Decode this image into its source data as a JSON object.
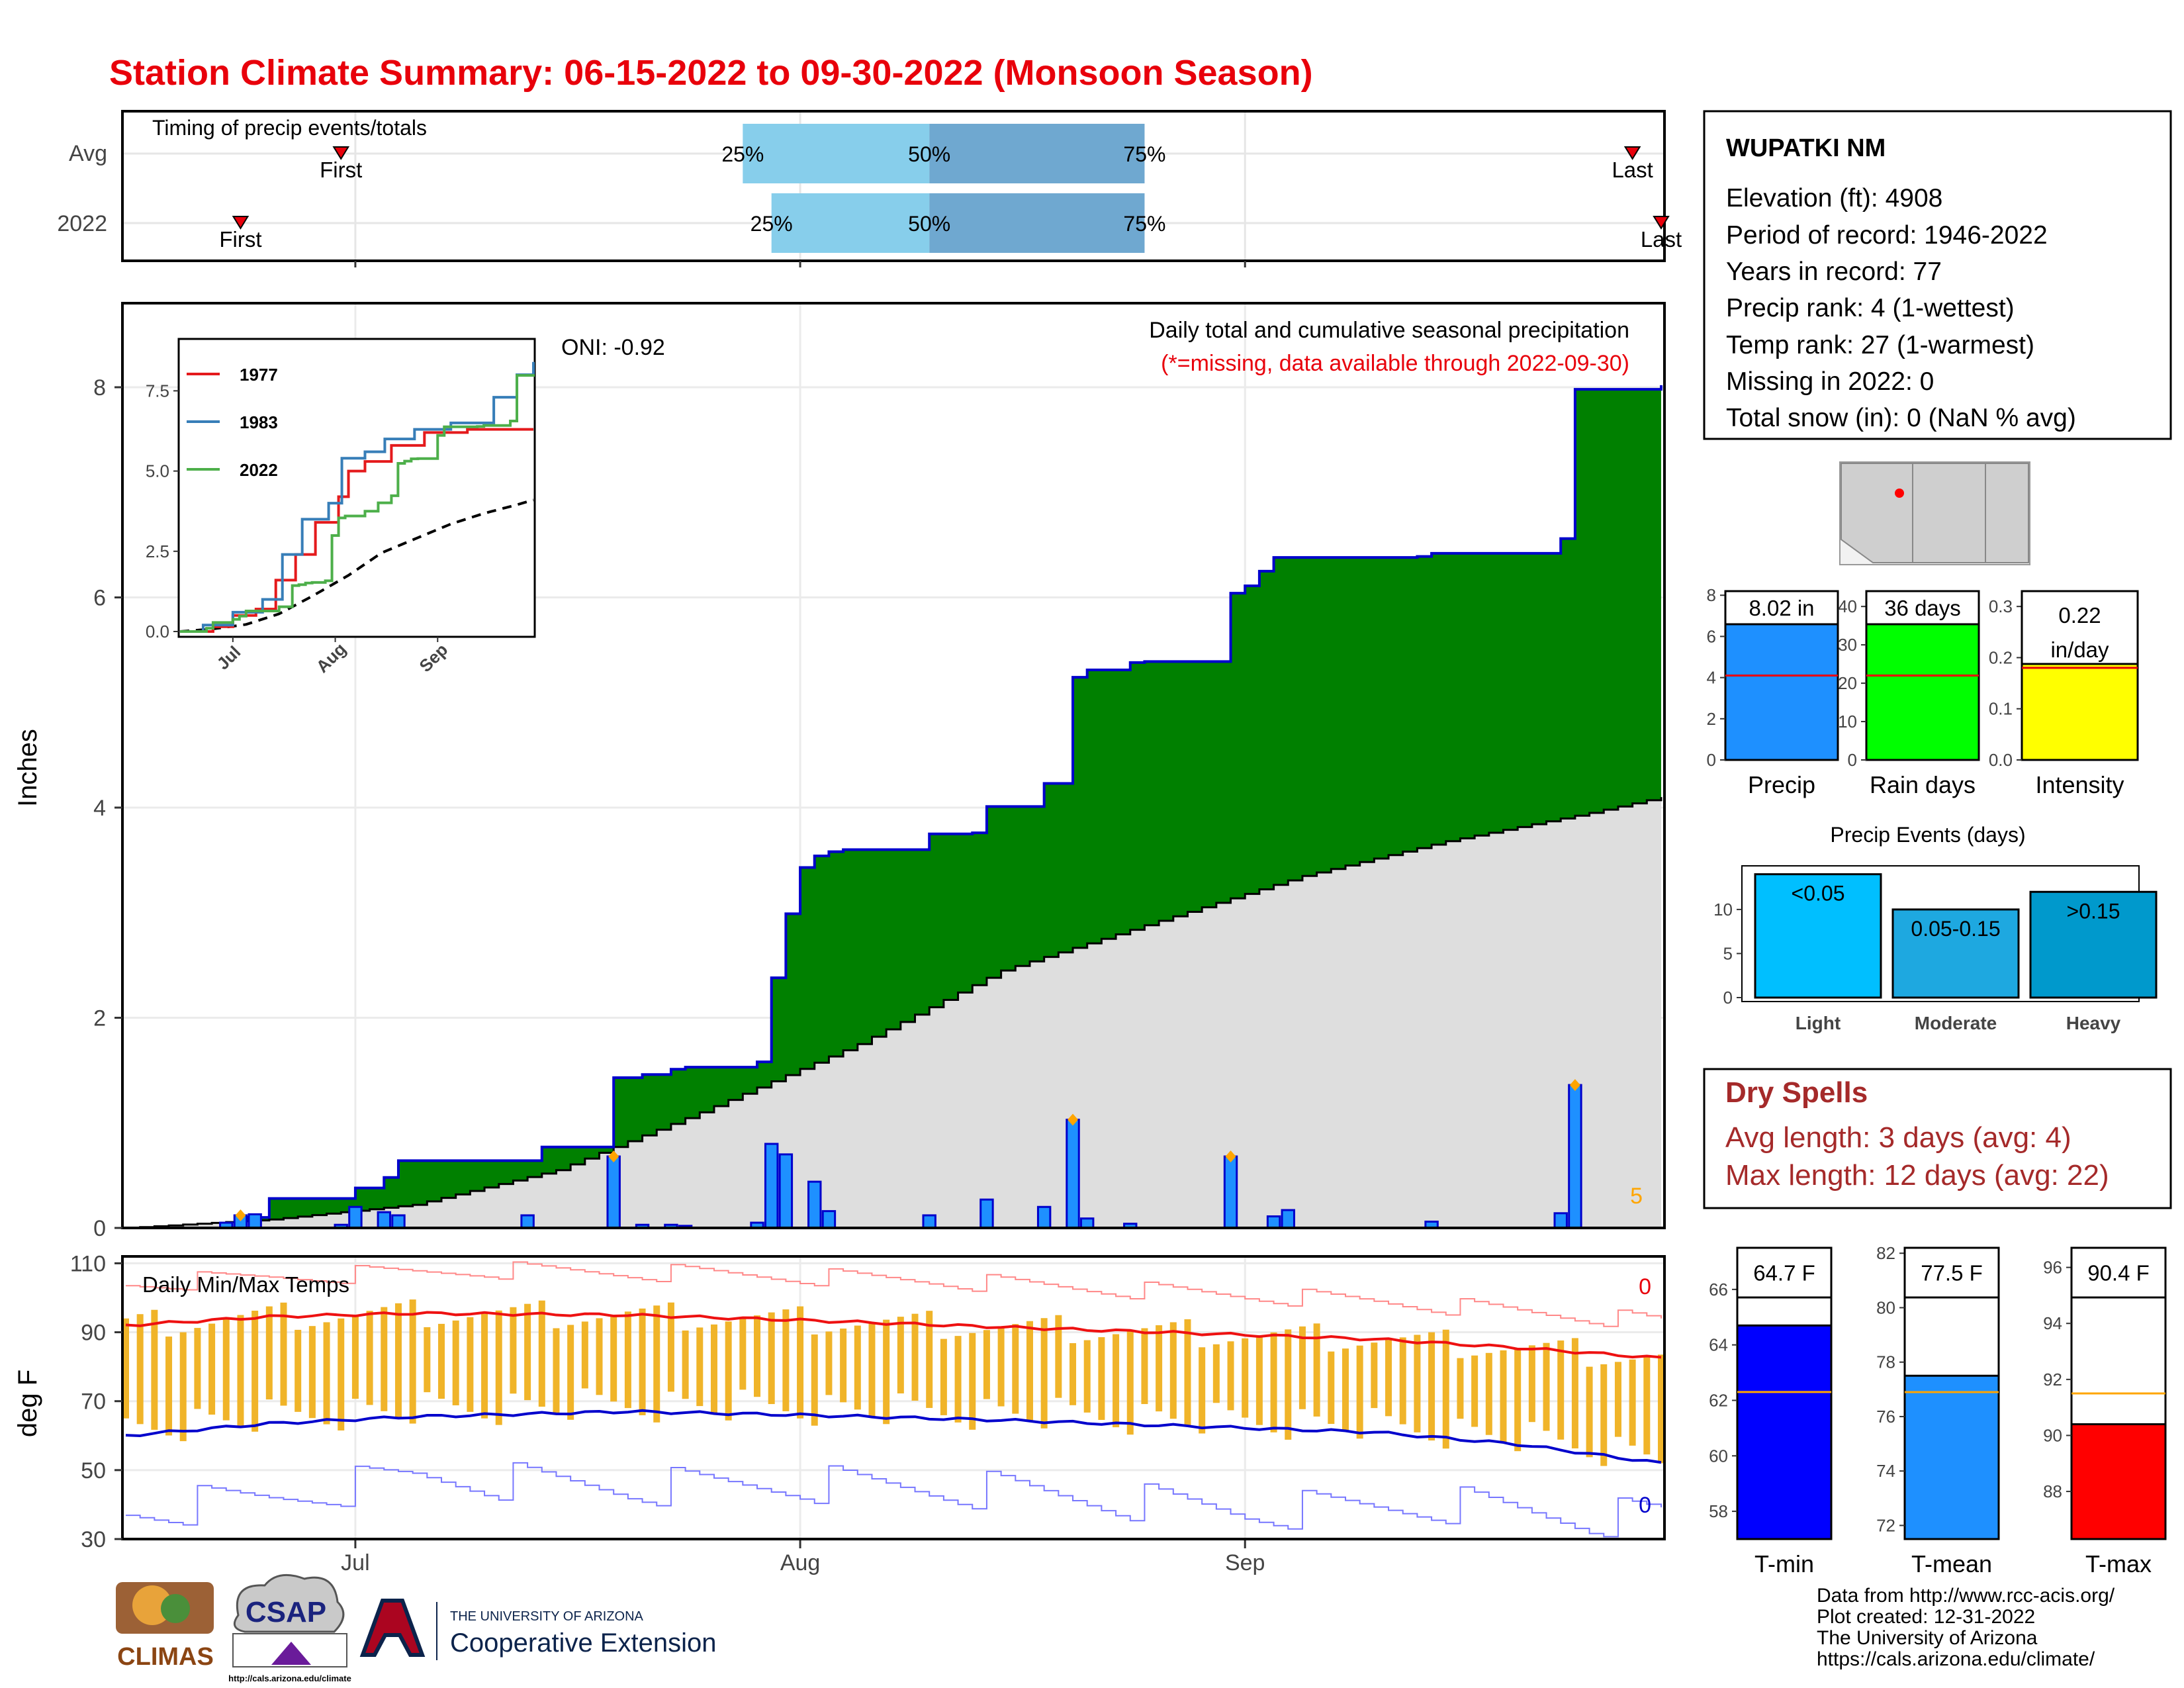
{
  "title": "Station Climate Summary: 06-15-2022 to 09-30-2022 (Monsoon Season)",
  "colors": {
    "title": "#e8000b",
    "cum_fill": "#008000",
    "cum_line": "#0000cc",
    "normal_fill": "#dedede",
    "daily_bar": "#1e90ff",
    "temp_range_bar": "#f0b429",
    "tmax_avg": "#ee1111",
    "tmin_avg": "#0000cc",
    "qrt_light": "#87ceeb",
    "qrt_dark": "#6fa8d0",
    "dry": "#a52a2a",
    "marker": "#ffa500"
  },
  "timing": {
    "title": "Timing of precip events/totals",
    "rows": [
      {
        "label": "Avg",
        "first_label": "First",
        "last_label": "Last",
        "first": "2022-06-30",
        "p25": "2022-07-28",
        "p50": "2022-08-10",
        "p75": "2022-08-25",
        "last": "2022-09-28"
      },
      {
        "label": "2022",
        "first_label": "First",
        "last_label": "Last",
        "first": "2022-06-23",
        "p25": "2022-07-30",
        "p50": "2022-08-10",
        "p75": "2022-08-25",
        "last": "2022-09-30"
      }
    ],
    "pct_labels": [
      "25%",
      "50%",
      "75%"
    ]
  },
  "station": {
    "name": "WUPATKI NM",
    "lines": [
      "Elevation (ft): 4908",
      "Period of record: 1946-2022",
      "Years in record: 77",
      "Precip rank: 4 (1-wettest)",
      "Temp rank: 27 (1-warmest)",
      "Missing in 2022: 0",
      "Total snow (in): 0 (NaN % avg)"
    ]
  },
  "main_panel": {
    "ylabel": "Inches",
    "oni": "ONI: -0.92",
    "subtitle": "Daily total and cumulative seasonal precipitation",
    "missing_note": "(*=missing, data available through 2022-09-30)",
    "corner_count": "5"
  },
  "inset": {
    "legend": [
      {
        "name": "1977",
        "color": "#e41a1c"
      },
      {
        "name": "1983",
        "color": "#377eb8"
      },
      {
        "name": "2022",
        "color": "#4daf4a"
      }
    ],
    "yticks": [
      "0.0",
      "2.5",
      "5.0",
      "7.5"
    ],
    "xticks": [
      "Jul",
      "Aug",
      "Sep"
    ]
  },
  "temp_panel": {
    "ylabel": "deg F",
    "title": "Daily Min/Max Temps",
    "count_max": "0",
    "count_min": "0"
  },
  "x_ticks": [
    "Jul",
    "Aug",
    "Sep"
  ],
  "mini_bars": {
    "precip": {
      "label": "Precip",
      "value_label": "8.02 in",
      "value": 8.02,
      "avg": 4.1,
      "ymax": 8.2,
      "ticks": [
        "0",
        "2",
        "4",
        "6",
        "8"
      ],
      "color": "#1e90ff"
    },
    "raindays": {
      "label": "Rain days",
      "value_label": "36 days",
      "value": 36,
      "avg": 22,
      "ymax": 44,
      "ticks": [
        "0",
        "10",
        "20",
        "30",
        "40"
      ],
      "color": "#00ff00"
    },
    "intensity": {
      "label": "Intensity",
      "value_label": "0.22",
      "value_label2": "in/day",
      "value": 0.22,
      "avg": 0.18,
      "ymax": 0.33,
      "ticks": [
        "0.0",
        "0.1",
        "0.2",
        "0.3"
      ],
      "color": "#ffff00"
    }
  },
  "events": {
    "title": "Precip Events (days)",
    "ticks": [
      "0",
      "5",
      "10"
    ],
    "bars": [
      {
        "category": "Light",
        "label": "<0.05",
        "value": 14,
        "color": "#00bfff"
      },
      {
        "category": "Moderate",
        "label": "0.05-0.15",
        "value": 10,
        "color": "#1ea8e0"
      },
      {
        "category": "Heavy",
        "label": ">0.15",
        "value": 12,
        "color": "#0099cc"
      }
    ]
  },
  "dry_spells": {
    "title": "Dry Spells",
    "avg_line": "Avg length: 3 days (avg: 4)",
    "max_line": "Max length: 12 days (avg: 22)"
  },
  "temp_bars": {
    "tmin": {
      "label": "T-min",
      "value_label": "64.7 F",
      "value": 64.7,
      "avg": 62.3,
      "ymin": 57,
      "ymax": 67.5,
      "ticks": [
        "58",
        "60",
        "62",
        "64",
        "66"
      ],
      "color": "#0000ff"
    },
    "tmean": {
      "label": "T-mean",
      "value_label": "77.5 F",
      "value": 77.5,
      "avg": 76.9,
      "ymin": 71.5,
      "ymax": 82.2,
      "ticks": [
        "72",
        "74",
        "76",
        "78",
        "80",
        "82"
      ],
      "color": "#1e90ff"
    },
    "tmax": {
      "label": "T-max",
      "value_label": "90.4 F",
      "value": 90.4,
      "avg": 91.5,
      "ymin": 86.3,
      "ymax": 96.7,
      "ticks": [
        "88",
        "90",
        "92",
        "94",
        "96"
      ],
      "color": "#ff0000"
    }
  },
  "credits": [
    "Data from http://www.rcc-acis.org/",
    "Plot created: 12-31-2022",
    "The University of Arizona",
    "https://cals.arizona.edu/climate/"
  ],
  "logos": {
    "climas": "CLIMAS",
    "csap": "CSAP",
    "csap_url": "http://cals.arizona.edu/climate",
    "ua_small": "THE UNIVERSITY OF ARIZONA",
    "ua_ext": "Cooperative Extension"
  },
  "chart_data": [
    {
      "type": "area",
      "title": "Daily total and cumulative seasonal precipitation",
      "ylabel": "Inches",
      "ylim": [
        0,
        8.8
      ],
      "x_range": [
        "2022-06-15",
        "2022-09-30"
      ],
      "cumulative_2022": [
        [
          "2022-06-15",
          0
        ],
        [
          "2022-06-23",
          0.1
        ],
        [
          "2022-06-25",
          0.28
        ],
        [
          "2022-07-01",
          0.38
        ],
        [
          "2022-07-03",
          0.48
        ],
        [
          "2022-07-04",
          0.64
        ],
        [
          "2022-07-11",
          0.64
        ],
        [
          "2022-07-12",
          0.64
        ],
        [
          "2022-07-14",
          0.77
        ],
        [
          "2022-07-15",
          0.77
        ],
        [
          "2022-07-18",
          0.77
        ],
        [
          "2022-07-19",
          1.43
        ],
        [
          "2022-07-20",
          1.43
        ],
        [
          "2022-07-21",
          1.46
        ],
        [
          "2022-07-23",
          1.51
        ],
        [
          "2022-07-24",
          1.53
        ],
        [
          "2022-07-26",
          1.53
        ],
        [
          "2022-07-27",
          1.53
        ],
        [
          "2022-07-29",
          1.58
        ],
        [
          "2022-07-30",
          2.38
        ],
        [
          "2022-07-31",
          2.99
        ],
        [
          "2022-08-01",
          3.43
        ],
        [
          "2022-08-02",
          3.54
        ],
        [
          "2022-08-03",
          3.58
        ],
        [
          "2022-08-04",
          3.6
        ],
        [
          "2022-08-09",
          3.6
        ],
        [
          "2022-08-10",
          3.75
        ],
        [
          "2022-08-13",
          3.76
        ],
        [
          "2022-08-14",
          4.01
        ],
        [
          "2022-08-17",
          4.01
        ],
        [
          "2022-08-18",
          4.23
        ],
        [
          "2022-08-20",
          5.24
        ],
        [
          "2022-08-21",
          5.31
        ],
        [
          "2022-08-24",
          5.38
        ],
        [
          "2022-08-25",
          5.39
        ],
        [
          "2022-08-30",
          5.39
        ],
        [
          "2022-08-31",
          6.04
        ],
        [
          "2022-09-01",
          6.11
        ],
        [
          "2022-09-02",
          6.25
        ],
        [
          "2022-09-03",
          6.38
        ],
        [
          "2022-09-12",
          6.38
        ],
        [
          "2022-09-13",
          6.39
        ],
        [
          "2022-09-14",
          6.42
        ],
        [
          "2022-09-22",
          6.42
        ],
        [
          "2022-09-23",
          6.56
        ],
        [
          "2022-09-24",
          7.98
        ],
        [
          "2022-09-30",
          8.02
        ]
      ],
      "normal_cumulative": [
        [
          "2022-06-15",
          0
        ],
        [
          "2022-06-25",
          0.08
        ],
        [
          "2022-07-05",
          0.22
        ],
        [
          "2022-07-15",
          0.55
        ],
        [
          "2022-07-25",
          1.1
        ],
        [
          "2022-08-05",
          1.75
        ],
        [
          "2022-08-15",
          2.45
        ],
        [
          "2022-08-25",
          2.88
        ],
        [
          "2022-09-05",
          3.35
        ],
        [
          "2022-09-15",
          3.68
        ],
        [
          "2022-09-25",
          3.95
        ],
        [
          "2022-09-30",
          4.1
        ]
      ],
      "daily_precip": [
        [
          "2022-06-22",
          0.05
        ],
        [
          "2022-06-23",
          0.12
        ],
        [
          "2022-06-24",
          0.13
        ],
        [
          "2022-06-30",
          0.03
        ],
        [
          "2022-07-01",
          0.2
        ],
        [
          "2022-07-03",
          0.15
        ],
        [
          "2022-07-04",
          0.12
        ],
        [
          "2022-07-13",
          0.12
        ],
        [
          "2022-07-19",
          0.68
        ],
        [
          "2022-07-21",
          0.03
        ],
        [
          "2022-07-23",
          0.03
        ],
        [
          "2022-07-24",
          0.02
        ],
        [
          "2022-07-29",
          0.05
        ],
        [
          "2022-07-30",
          0.8
        ],
        [
          "2022-07-31",
          0.7
        ],
        [
          "2022-08-02",
          0.44
        ],
        [
          "2022-08-03",
          0.16
        ],
        [
          "2022-08-10",
          0.12
        ],
        [
          "2022-08-14",
          0.27
        ],
        [
          "2022-08-18",
          0.2
        ],
        [
          "2022-08-20",
          1.03
        ],
        [
          "2022-08-21",
          0.09
        ],
        [
          "2022-08-24",
          0.04
        ],
        [
          "2022-08-31",
          0.68
        ],
        [
          "2022-09-03",
          0.11
        ],
        [
          "2022-09-04",
          0.17
        ],
        [
          "2022-09-14",
          0.06
        ],
        [
          "2022-09-23",
          0.14
        ],
        [
          "2022-09-24",
          1.36
        ]
      ],
      "flagged_days": [
        "2022-06-23",
        "2022-07-19",
        "2022-08-20",
        "2022-08-31",
        "2022-09-24"
      ]
    },
    {
      "type": "line",
      "title": "Daily Min/Max Temps",
      "ylabel": "deg F",
      "ylim": [
        30,
        112
      ],
      "avg_tmax": [
        [
          "2022-06-15",
          92
        ],
        [
          "2022-06-25",
          94.5
        ],
        [
          "2022-07-05",
          95.5
        ],
        [
          "2022-07-20",
          95
        ],
        [
          "2022-08-01",
          93.5
        ],
        [
          "2022-08-15",
          91.5
        ],
        [
          "2022-08-30",
          89.5
        ],
        [
          "2022-09-10",
          88
        ],
        [
          "2022-09-20",
          85.5
        ],
        [
          "2022-09-30",
          82.5
        ]
      ],
      "avg_tmin": [
        [
          "2022-06-15",
          60
        ],
        [
          "2022-06-25",
          63.5
        ],
        [
          "2022-07-05",
          65.5
        ],
        [
          "2022-07-20",
          67
        ],
        [
          "2022-08-01",
          66
        ],
        [
          "2022-08-15",
          64.5
        ],
        [
          "2022-08-30",
          62.5
        ],
        [
          "2022-09-10",
          61
        ],
        [
          "2022-09-20",
          57.5
        ],
        [
          "2022-09-30",
          52
        ]
      ],
      "record_high": [
        [
          "2022-06-15",
          104
        ],
        [
          "2022-06-25",
          106
        ],
        [
          "2022-07-10",
          108
        ],
        [
          "2022-07-25",
          107
        ],
        [
          "2022-08-10",
          105
        ],
        [
          "2022-08-25",
          102
        ],
        [
          "2022-09-10",
          99
        ],
        [
          "2022-09-20",
          96
        ],
        [
          "2022-09-30",
          93
        ]
      ],
      "record_low": [
        [
          "2022-06-15",
          38
        ],
        [
          "2022-06-25",
          42
        ],
        [
          "2022-07-05",
          48
        ],
        [
          "2022-07-20",
          45
        ],
        [
          "2022-08-01",
          46
        ],
        [
          "2022-08-15",
          44
        ],
        [
          "2022-09-01",
          38
        ],
        [
          "2022-09-15",
          40
        ],
        [
          "2022-09-25",
          36
        ],
        [
          "2022-09-30",
          37
        ]
      ]
    },
    {
      "type": "bar",
      "categories": [
        "Precip"
      ],
      "values": [
        8.02
      ],
      "avg": 4.1,
      "unit": "in"
    },
    {
      "type": "bar",
      "categories": [
        "Rain days"
      ],
      "values": [
        36
      ],
      "avg": 22,
      "unit": "days"
    },
    {
      "type": "bar",
      "categories": [
        "Intensity"
      ],
      "values": [
        0.22
      ],
      "avg": 0.18,
      "unit": "in/day"
    },
    {
      "type": "bar",
      "title": "Precip Events (days)",
      "categories": [
        "Light",
        "Moderate",
        "Heavy"
      ],
      "values": [
        14,
        10,
        12
      ]
    },
    {
      "type": "bar",
      "categories": [
        "T-min",
        "T-mean",
        "T-max"
      ],
      "values": [
        64.7,
        77.5,
        90.4
      ],
      "avg": [
        62.3,
        76.9,
        91.5
      ],
      "unit": "F"
    }
  ]
}
